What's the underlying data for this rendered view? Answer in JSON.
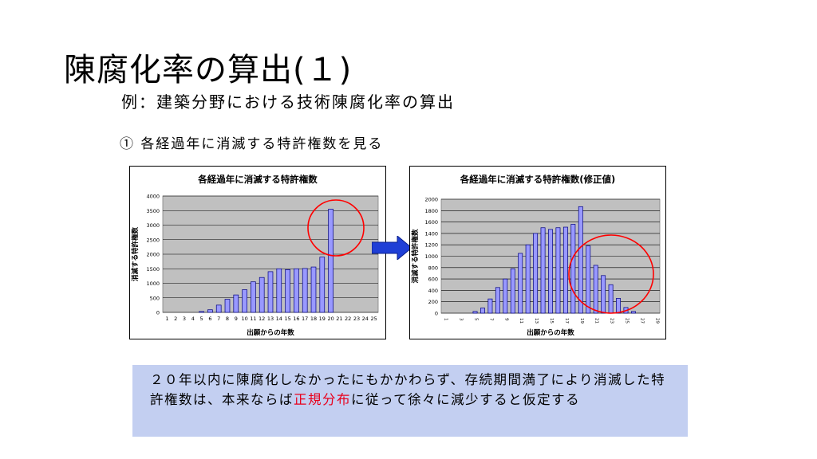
{
  "slide": {
    "title": "陳腐化率の算出(１)",
    "subtitle": "例：建築分野における技術陳腐化率の算出",
    "step": "① 各経過年に消滅する特許権数を見る"
  },
  "note": {
    "part1": "２０年以内に陳腐化しなかったにもかかわらず、存続期間満了により消滅した特許権数は、本来ならば",
    "highlight": "正規分布",
    "part2": "に従って徐々に減少すると仮定する"
  },
  "colors": {
    "plot_bg": "#c0c0c0",
    "bar_fill": "#9999ff",
    "bar_stroke": "#000080",
    "circle": "#ff0000",
    "arrow": "#1f3fd6",
    "note_bg": "#c3cff1",
    "highlight": "#e8001c"
  },
  "arrow_icon": "right-arrow-icon",
  "chart_data": [
    {
      "type": "bar",
      "title": "各経過年に消滅する特許権数",
      "xlabel": "出願からの年数",
      "ylabel": "消滅する特許権数",
      "ylim": [
        0,
        4000
      ],
      "yticks": [
        "0",
        "500",
        "1000",
        "1500",
        "2000",
        "2500",
        "3000",
        "3500",
        "4000"
      ],
      "categories": [
        "1",
        "2",
        "3",
        "4",
        "5",
        "6",
        "7",
        "8",
        "9",
        "10",
        "11",
        "12",
        "13",
        "14",
        "15",
        "16",
        "17",
        "18",
        "19",
        "20",
        "21",
        "22",
        "23",
        "24",
        "25"
      ],
      "values": [
        0,
        0,
        0,
        0,
        30,
        90,
        250,
        450,
        600,
        780,
        1050,
        1200,
        1400,
        1500,
        1470,
        1500,
        1510,
        1560,
        1900,
        3550,
        0,
        0,
        0,
        0,
        0
      ],
      "grid": true,
      "annotation": "circle around year 20"
    },
    {
      "type": "bar",
      "title": "各経過年に消滅する特許権数(修正値)",
      "xlabel": "出願からの年数",
      "ylabel": "消滅する特許権数",
      "ylim": [
        0,
        2000
      ],
      "yticks": [
        "0",
        "200",
        "400",
        "600",
        "800",
        "1000",
        "1200",
        "1400",
        "1600",
        "1800",
        "2000"
      ],
      "categories": [
        "1",
        "2",
        "3",
        "4",
        "5",
        "6",
        "7",
        "8",
        "9",
        "10",
        "11",
        "12",
        "13",
        "14",
        "15",
        "16",
        "17",
        "18",
        "19",
        "20",
        "21",
        "22",
        "23",
        "24",
        "25",
        "26",
        "27",
        "28",
        "29"
      ],
      "xtick_labels": [
        "1",
        "3",
        "5",
        "7",
        "9",
        "11",
        "13",
        "15",
        "17",
        "19",
        "21",
        "23",
        "25",
        "27",
        "29"
      ],
      "values": [
        0,
        0,
        0,
        0,
        30,
        90,
        250,
        450,
        600,
        780,
        1050,
        1200,
        1400,
        1500,
        1470,
        1500,
        1510,
        1560,
        1870,
        1180,
        840,
        660,
        500,
        260,
        100,
        30,
        0,
        0,
        0
      ],
      "grid": true,
      "annotation": "circle around years 19-29"
    }
  ]
}
